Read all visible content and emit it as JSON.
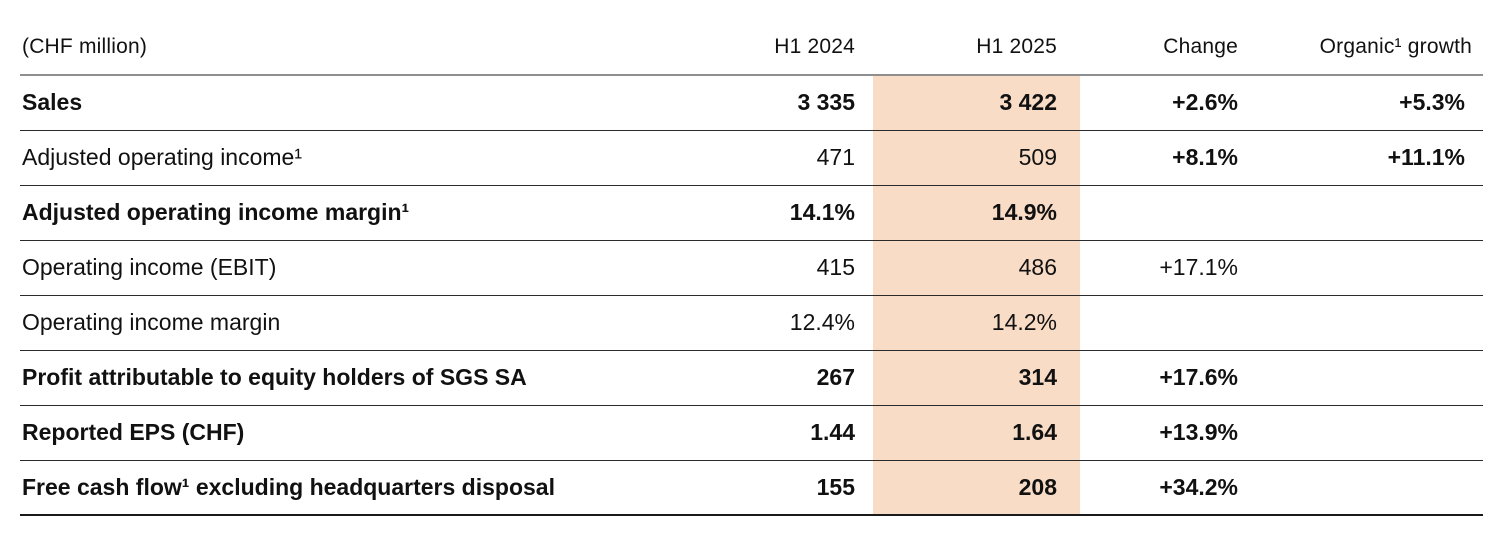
{
  "table": {
    "unit_label": "(CHF million)",
    "highlight_color": "#f8dcc6",
    "columns": {
      "h1_2024": "H1 2024",
      "h1_2025": "H1 2025",
      "change": "Change",
      "organic": "Organic¹ growth"
    },
    "rows": [
      {
        "label": "Sales",
        "h1_2024": "3 335",
        "h1_2025": "3 422",
        "change": "+2.6%",
        "organic": "+5.3%"
      },
      {
        "label": "Adjusted operating income¹",
        "h1_2024": "471",
        "h1_2025": "509",
        "change": "+8.1%",
        "organic": "+11.1%"
      },
      {
        "label": "Adjusted operating income margin¹",
        "h1_2024": "14.1%",
        "h1_2025": "14.9%",
        "change": "",
        "organic": ""
      },
      {
        "label": "Operating income (EBIT)",
        "h1_2024": "415",
        "h1_2025": "486",
        "change": "+17.1%",
        "organic": ""
      },
      {
        "label": "Operating income margin",
        "h1_2024": "12.4%",
        "h1_2025": "14.2%",
        "change": "",
        "organic": ""
      },
      {
        "label": "Profit attributable to equity holders of SGS SA",
        "h1_2024": "267",
        "h1_2025": "314",
        "change": "+17.6%",
        "organic": ""
      },
      {
        "label": "Reported EPS (CHF)",
        "h1_2024": "1.44",
        "h1_2025": "1.64",
        "change": "+13.9%",
        "organic": ""
      },
      {
        "label": "Free cash flow¹ excluding headquarters disposal",
        "h1_2024": "155",
        "h1_2025": "208",
        "change": "+34.2%",
        "organic": ""
      }
    ]
  }
}
